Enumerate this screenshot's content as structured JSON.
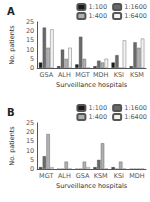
{
  "chart_data": [
    {
      "type": "bar",
      "title": "A",
      "categories": [
        "GSA",
        "ALH",
        "MGT",
        "MDH",
        "KSI",
        "KSM"
      ],
      "series": [
        {
          "name": "1:100",
          "color": "#1a1a1a",
          "values": [
            3,
            1,
            2,
            1,
            3,
            1
          ]
        },
        {
          "name": "1:1600",
          "color": "#696969",
          "values": [
            22,
            10,
            17,
            4,
            7,
            14
          ]
        },
        {
          "name": "1:400",
          "color": "#b0b0b0",
          "values": [
            11,
            5,
            5,
            3,
            0,
            11
          ]
        },
        {
          "name": "1:6400",
          "color": "#f2f2f2",
          "values": [
            21,
            11,
            0,
            5,
            15,
            16
          ]
        }
      ],
      "ylim": [
        0,
        25
      ],
      "yticks": [
        0,
        5,
        10,
        15,
        20,
        25
      ],
      "ylabel": "No. patients",
      "xlabel": "Surveillance hospitals",
      "grid": false,
      "legend": "upper right"
    },
    {
      "type": "bar",
      "title": "B",
      "categories": [
        "MGT",
        "ALH",
        "GSA",
        "KSM",
        "KSI",
        "MDH"
      ],
      "series": [
        {
          "name": "1:100",
          "color": "#1a1a1a",
          "values": [
            1,
            0,
            0,
            1,
            1,
            0
          ]
        },
        {
          "name": "1:1600",
          "color": "#696969",
          "values": [
            7,
            0,
            0,
            5,
            0,
            0
          ]
        },
        {
          "name": "1:400",
          "color": "#b0b0b0",
          "values": [
            19,
            4,
            4,
            14,
            4,
            0
          ]
        },
        {
          "name": "1:6400",
          "color": "#f2f2f2",
          "values": [
            1,
            0,
            1,
            0,
            0,
            0
          ]
        }
      ],
      "ylim": [
        0,
        25
      ],
      "yticks": [
        0,
        5,
        10,
        15,
        20,
        25
      ],
      "ylabel": "No. patients",
      "xlabel": "Surveillance hospitals",
      "grid": false,
      "legend": "upper right"
    }
  ]
}
